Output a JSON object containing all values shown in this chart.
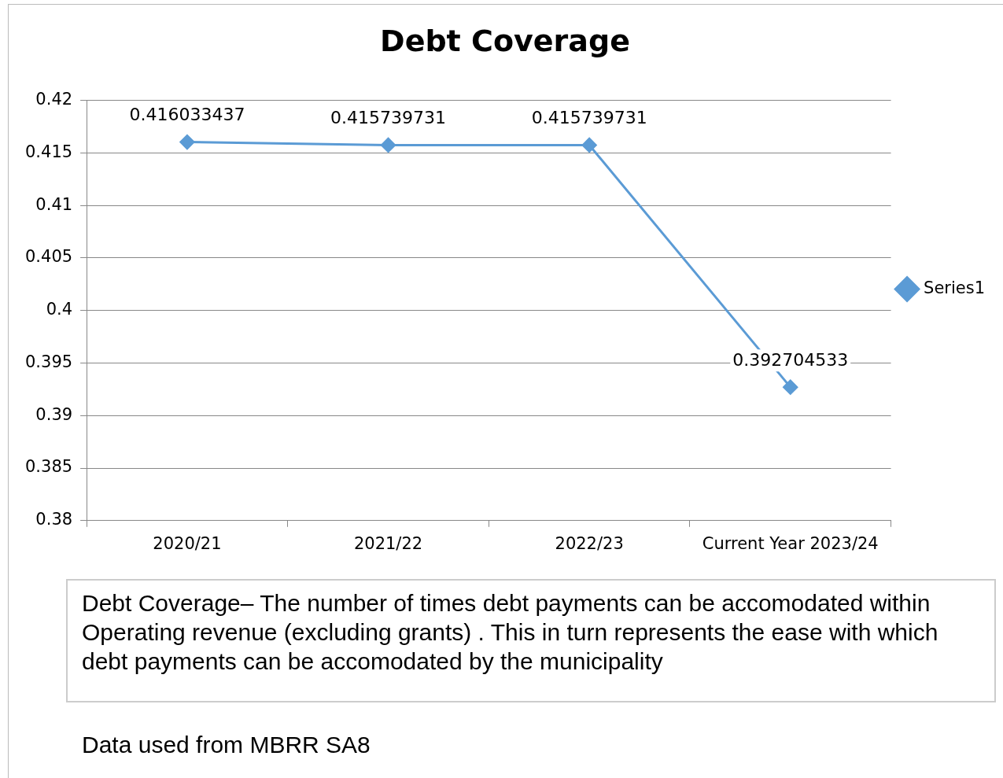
{
  "chart_data": {
    "type": "line",
    "title": "Debt Coverage",
    "categories": [
      "2020/21",
      "2021/22",
      "2022/23",
      "Current Year 2023/24"
    ],
    "series": [
      {
        "name": "Series1",
        "color": "#5b9bd5",
        "values": [
          0.416033437,
          0.415739731,
          0.415739731,
          0.392704533
        ]
      }
    ],
    "ylim": [
      0.38,
      0.42
    ],
    "yticks": [
      0.38,
      0.385,
      0.39,
      0.395,
      0.4,
      0.405,
      0.41,
      0.415,
      0.42
    ],
    "grid": "y",
    "legend": "right",
    "marker": "diamond",
    "line_style": "solid",
    "data_labels": true,
    "annotations": [
      "Debt Coverage–  The number of times debt payments can be accomodated within Operating revenue (excluding grants) .  This in turn represents the ease with which debt payments can be accomodated by the municipality",
      "Data used from MBRR SA8"
    ]
  }
}
